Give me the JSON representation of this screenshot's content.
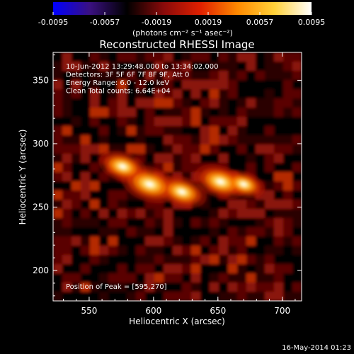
{
  "chart_data": {
    "type": "heatmap",
    "title": "Reconstructed RHESSI Image",
    "xlabel": "Heliocentric X (arcsec)",
    "ylabel": "Heliocentric Y (arcsec)",
    "xlim": [
      522,
      715
    ],
    "ylim": [
      176,
      372
    ],
    "x_ticks": [
      550,
      600,
      650,
      700
    ],
    "y_ticks": [
      200,
      250,
      300,
      350
    ],
    "colorbar": {
      "range": [
        -0.0095,
        0.0095
      ],
      "ticks": [
        "-0.0095",
        "-0.0057",
        "-0.0019",
        "0.0019",
        "0.0057",
        "0.0095"
      ],
      "unit_label": "(photons cm⁻² s⁻¹ asec⁻²)",
      "colormap": [
        "#0000ff",
        "#3a1080",
        "#000000",
        "#8a0a0a",
        "#e02000",
        "#ff8a00",
        "#ffd23a",
        "#ffffff"
      ]
    },
    "annotations": [
      "10-Jun-2012 13:29:48.000 to 13:34:02.000",
      "Detectors: 3F 5F 6F 7F 8F 9F, Att 0",
      "Energy Range: 6.0 - 12.0 keV",
      "Clean     Total counts: 6.64E+04"
    ],
    "peak_label": "Position of Peak = [595,270]",
    "peak_position": [
      595,
      270
    ],
    "sources": [
      {
        "x": 597,
        "y": 268,
        "intensity": 1.0
      },
      {
        "x": 576,
        "y": 282,
        "intensity": 0.7
      },
      {
        "x": 622,
        "y": 262,
        "intensity": 0.75
      },
      {
        "x": 652,
        "y": 270,
        "intensity": 0.85
      },
      {
        "x": 670,
        "y": 268,
        "intensity": 0.55
      }
    ],
    "timestamp": "16-May-2014 01:23"
  }
}
